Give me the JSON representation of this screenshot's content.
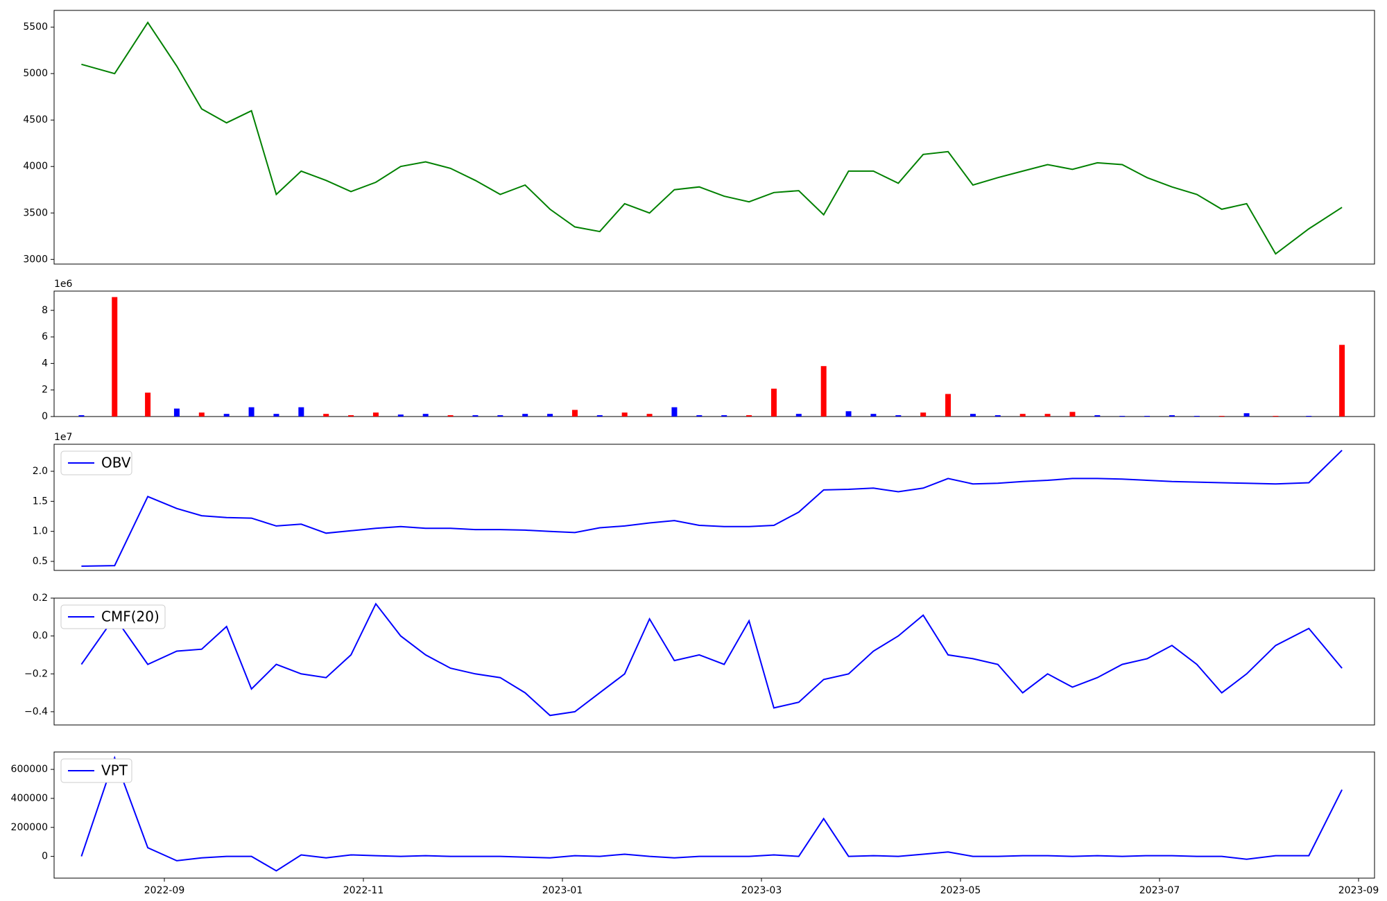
{
  "chart_data": [
    {
      "type": "line",
      "x": [
        "2022-08",
        "2022-08",
        "2022-08",
        "2022-09",
        "2022-09",
        "2022-09",
        "2022-09",
        "2022-10",
        "2022-10",
        "2022-10",
        "2022-10",
        "2022-11",
        "2022-11",
        "2022-11",
        "2022-11",
        "2022-12",
        "2022-12",
        "2022-12",
        "2022-12",
        "2023-01",
        "2023-01",
        "2023-01",
        "2023-01",
        "2023-02",
        "2023-02",
        "2023-02",
        "2023-02",
        "2023-03",
        "2023-03",
        "2023-03",
        "2023-03",
        "2023-04",
        "2023-04",
        "2023-04",
        "2023-04",
        "2023-05",
        "2023-05",
        "2023-05",
        "2023-05",
        "2023-06",
        "2023-06",
        "2023-06",
        "2023-06",
        "2023-07",
        "2023-07",
        "2023-07",
        "2023-07",
        "2023-08",
        "2023-08",
        "2023-08"
      ],
      "series": [
        {
          "color": "green",
          "values": [
            5100,
            5000,
            5550,
            5080,
            4620,
            4470,
            4600,
            3700,
            3950,
            3850,
            3730,
            3830,
            4000,
            4050,
            3980,
            3850,
            3700,
            3800,
            3540,
            3350,
            3300,
            3600,
            3500,
            3750,
            3780,
            3680,
            3620,
            3720,
            3740,
            3480,
            3950,
            3950,
            3820,
            4130,
            4160,
            3800,
            3880,
            3950,
            4020,
            3970,
            4040,
            4020,
            3880,
            3780,
            3700,
            3540,
            3600,
            3060,
            3330,
            3560
          ]
        }
      ],
      "ylim": [
        2950,
        5680
      ],
      "yticks": [
        3000,
        3500,
        4000,
        4500,
        5000,
        5500
      ]
    },
    {
      "type": "bar",
      "offset_label": "1e6",
      "x": [
        "2022-08",
        "2022-08",
        "2022-08",
        "2022-09",
        "2022-09",
        "2022-09",
        "2022-09",
        "2022-10",
        "2022-10",
        "2022-10",
        "2022-10",
        "2022-11",
        "2022-11",
        "2022-11",
        "2022-11",
        "2022-12",
        "2022-12",
        "2022-12",
        "2022-12",
        "2023-01",
        "2023-01",
        "2023-01",
        "2023-01",
        "2023-02",
        "2023-02",
        "2023-02",
        "2023-02",
        "2023-03",
        "2023-03",
        "2023-03",
        "2023-03",
        "2023-04",
        "2023-04",
        "2023-04",
        "2023-04",
        "2023-05",
        "2023-05",
        "2023-05",
        "2023-05",
        "2023-06",
        "2023-06",
        "2023-06",
        "2023-06",
        "2023-07",
        "2023-07",
        "2023-07",
        "2023-07",
        "2023-08",
        "2023-08",
        "2023-08"
      ],
      "values": [
        100000,
        9000000,
        1800000,
        600000,
        300000,
        200000,
        700000,
        200000,
        700000,
        200000,
        100000,
        300000,
        150000,
        200000,
        100000,
        100000,
        100000,
        200000,
        200000,
        500000,
        100000,
        300000,
        200000,
        700000,
        100000,
        100000,
        100000,
        2100000,
        200000,
        3800000,
        400000,
        200000,
        100000,
        300000,
        1700000,
        200000,
        100000,
        200000,
        200000,
        350000,
        100000,
        50000,
        50000,
        100000,
        50000,
        50000,
        250000,
        50000,
        50000,
        5400000
      ],
      "colors": [
        "blue",
        "red",
        "red",
        "blue",
        "red",
        "blue",
        "blue",
        "blue",
        "blue",
        "red",
        "red",
        "red",
        "blue",
        "blue",
        "red",
        "blue",
        "blue",
        "blue",
        "blue",
        "red",
        "blue",
        "red",
        "red",
        "blue",
        "blue",
        "blue",
        "red",
        "red",
        "blue",
        "red",
        "blue",
        "blue",
        "blue",
        "red",
        "red",
        "blue",
        "blue",
        "red",
        "red",
        "red",
        "blue",
        "blue",
        "blue",
        "blue",
        "blue",
        "red",
        "blue",
        "red",
        "blue",
        "red"
      ],
      "ylim": [
        0,
        9450000
      ],
      "yticks": [
        0,
        {
          "value": 2000000,
          "label": "2"
        },
        {
          "value": 4000000,
          "label": "4"
        },
        {
          "value": 6000000,
          "label": "6"
        },
        {
          "value": 8000000,
          "label": "8"
        }
      ]
    },
    {
      "type": "line",
      "offset_label": "1e7",
      "legend": "upper left",
      "x": [
        "2022-08",
        "2022-08",
        "2022-08",
        "2022-09",
        "2022-09",
        "2022-09",
        "2022-09",
        "2022-10",
        "2022-10",
        "2022-10",
        "2022-10",
        "2022-11",
        "2022-11",
        "2022-11",
        "2022-11",
        "2022-12",
        "2022-12",
        "2022-12",
        "2022-12",
        "2023-01",
        "2023-01",
        "2023-01",
        "2023-01",
        "2023-02",
        "2023-02",
        "2023-02",
        "2023-02",
        "2023-03",
        "2023-03",
        "2023-03",
        "2023-03",
        "2023-04",
        "2023-04",
        "2023-04",
        "2023-04",
        "2023-05",
        "2023-05",
        "2023-05",
        "2023-05",
        "2023-06",
        "2023-06",
        "2023-06",
        "2023-06",
        "2023-07",
        "2023-07",
        "2023-07",
        "2023-07",
        "2023-08",
        "2023-08",
        "2023-08"
      ],
      "series": [
        {
          "name": "OBV",
          "color": "blue",
          "values": [
            4200000,
            4300000,
            15800000,
            13800000,
            12600000,
            12300000,
            12200000,
            10900000,
            11200000,
            9700000,
            10100000,
            10500000,
            10800000,
            10500000,
            10500000,
            10300000,
            10300000,
            10200000,
            10000000,
            9800000,
            10600000,
            10900000,
            11400000,
            11800000,
            11000000,
            10800000,
            10800000,
            11000000,
            13200000,
            16900000,
            17000000,
            17200000,
            16600000,
            17200000,
            18800000,
            17900000,
            18000000,
            18300000,
            18500000,
            18800000,
            18800000,
            18700000,
            18500000,
            18300000,
            18200000,
            18100000,
            18000000,
            17900000,
            18100000,
            23500000
          ]
        }
      ],
      "ylim": [
        3500000,
        24500000
      ],
      "yticks": [
        {
          "value": 5000000,
          "label": "0.5"
        },
        {
          "value": 10000000,
          "label": "1.0"
        },
        {
          "value": 15000000,
          "label": "1.5"
        },
        {
          "value": 20000000,
          "label": "2.0"
        }
      ]
    },
    {
      "type": "line",
      "legend": "upper left",
      "x": [
        "2022-08",
        "2022-08",
        "2022-08",
        "2022-09",
        "2022-09",
        "2022-09",
        "2022-09",
        "2022-10",
        "2022-10",
        "2022-10",
        "2022-10",
        "2022-11",
        "2022-11",
        "2022-11",
        "2022-11",
        "2022-12",
        "2022-12",
        "2022-12",
        "2022-12",
        "2023-01",
        "2023-01",
        "2023-01",
        "2023-01",
        "2023-02",
        "2023-02",
        "2023-02",
        "2023-02",
        "2023-03",
        "2023-03",
        "2023-03",
        "2023-03",
        "2023-04",
        "2023-04",
        "2023-04",
        "2023-04",
        "2023-05",
        "2023-05",
        "2023-05",
        "2023-05",
        "2023-06",
        "2023-06",
        "2023-06",
        "2023-06",
        "2023-07",
        "2023-07",
        "2023-07",
        "2023-07",
        "2023-08",
        "2023-08",
        "2023-08"
      ],
      "series": [
        {
          "name": "CMF(20)",
          "color": "blue",
          "values": [
            -0.15,
            0.1,
            -0.15,
            -0.08,
            -0.07,
            0.05,
            -0.28,
            -0.15,
            -0.2,
            -0.22,
            -0.1,
            0.17,
            0.0,
            -0.1,
            -0.17,
            -0.2,
            -0.22,
            -0.3,
            -0.42,
            -0.4,
            -0.3,
            -0.2,
            0.09,
            -0.13,
            -0.1,
            -0.15,
            0.08,
            -0.38,
            -0.35,
            -0.23,
            -0.2,
            -0.08,
            0.0,
            0.11,
            -0.1,
            -0.12,
            -0.15,
            -0.3,
            -0.2,
            -0.27,
            -0.22,
            -0.15,
            -0.12,
            -0.05,
            -0.15,
            -0.3,
            -0.2,
            -0.05,
            0.04,
            -0.17
          ]
        }
      ],
      "ylim": [
        -0.47,
        0.2
      ],
      "yticks": [
        {
          "value": -0.4,
          "label": "−0.4"
        },
        {
          "value": -0.2,
          "label": "−0.2"
        },
        {
          "value": 0,
          "label": "0.0"
        },
        0.2
      ]
    },
    {
      "type": "line",
      "legend": "upper left",
      "x": [
        "2022-08",
        "2022-08",
        "2022-08",
        "2022-09",
        "2022-09",
        "2022-09",
        "2022-09",
        "2022-10",
        "2022-10",
        "2022-10",
        "2022-10",
        "2022-11",
        "2022-11",
        "2022-11",
        "2022-11",
        "2022-12",
        "2022-12",
        "2022-12",
        "2022-12",
        "2023-01",
        "2023-01",
        "2023-01",
        "2023-01",
        "2023-02",
        "2023-02",
        "2023-02",
        "2023-02",
        "2023-03",
        "2023-03",
        "2023-03",
        "2023-03",
        "2023-04",
        "2023-04",
        "2023-04",
        "2023-04",
        "2023-05",
        "2023-05",
        "2023-05",
        "2023-05",
        "2023-06",
        "2023-06",
        "2023-06",
        "2023-06",
        "2023-07",
        "2023-07",
        "2023-07",
        "2023-07",
        "2023-08",
        "2023-08",
        "2023-08"
      ],
      "series": [
        {
          "name": "VPT",
          "color": "blue",
          "values": [
            0,
            680000,
            60000,
            -30000,
            -10000,
            0,
            0,
            -100000,
            10000,
            -10000,
            10000,
            5000,
            0,
            5000,
            0,
            0,
            0,
            -5000,
            -10000,
            5000,
            0,
            15000,
            0,
            -10000,
            0,
            0,
            0,
            10000,
            0,
            260000,
            0,
            5000,
            0,
            15000,
            30000,
            0,
            0,
            5000,
            5000,
            0,
            5000,
            0,
            5000,
            5000,
            0,
            0,
            -20000,
            5000,
            5000,
            460000
          ]
        }
      ],
      "ylim": [
        -150000,
        720000
      ],
      "yticks": [
        0,
        200000,
        400000,
        600000
      ],
      "xticks": [
        "2022-09",
        "2022-11",
        "2023-01",
        "2023-03",
        "2023-05",
        "2023-07",
        "2023-09"
      ]
    }
  ]
}
